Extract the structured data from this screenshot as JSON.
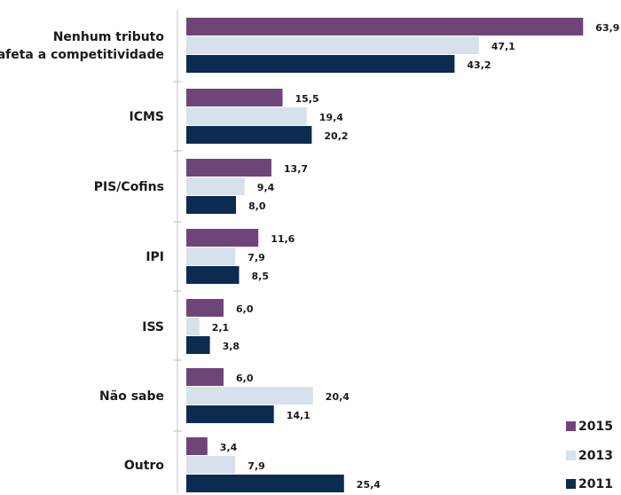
{
  "chart_data": {
    "type": "bar",
    "orientation": "horizontal",
    "categories": [
      [
        "Nenhum tributo",
        "afeta a competitividade"
      ],
      [
        "ICMS"
      ],
      [
        "PIS/Cofins"
      ],
      [
        "IPI"
      ],
      [
        "ISS"
      ],
      [
        "Não sabe"
      ],
      [
        "Outro"
      ]
    ],
    "series": [
      {
        "name": "2015",
        "color": "#6f4478",
        "values": [
          63.9,
          15.5,
          13.7,
          11.6,
          6.0,
          6.0,
          3.4
        ],
        "labels": [
          "63,9",
          "15,5",
          "13,7",
          "11,6",
          "6,0",
          "6,0",
          "3,4"
        ]
      },
      {
        "name": "2013",
        "color": "#d6e1ec",
        "values": [
          47.1,
          19.4,
          9.4,
          7.9,
          2.1,
          20.4,
          7.9
        ],
        "labels": [
          "47,1",
          "19,4",
          "9,4",
          "7,9",
          "2,1",
          "20,4",
          "7,9"
        ]
      },
      {
        "name": "2011",
        "color": "#0c2b51",
        "values": [
          43.2,
          20.2,
          8.0,
          8.5,
          3.8,
          14.1,
          25.4
        ],
        "labels": [
          "43,2",
          "20,2",
          "8,0",
          "8,5",
          "3,8",
          "14,1",
          "25,4"
        ]
      }
    ],
    "xlim": [
      0,
      64
    ],
    "grid": false,
    "legend_position": "bottom-right"
  }
}
